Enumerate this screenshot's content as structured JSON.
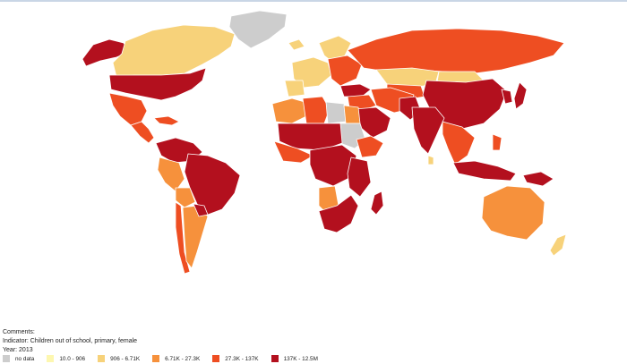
{
  "comments_label": "Comments:",
  "indicator_line": "Indicator: Children out of school, primary, female",
  "year_line": "Year: 2013",
  "legend": [
    {
      "label": "no data",
      "color": "#cdcdcd"
    },
    {
      "label": "10.0 - 906",
      "color": "#fdf7b0"
    },
    {
      "label": "906 - 6.71K",
      "color": "#f7d27a"
    },
    {
      "label": "6.71K - 27.3K",
      "color": "#f6913c"
    },
    {
      "label": "27.3K - 137K",
      "color": "#ee4e22"
    },
    {
      "label": "137K - 12.5M",
      "color": "#b3101e"
    }
  ],
  "regions": [
    {
      "name": "alaska",
      "cls": 5
    },
    {
      "name": "canada",
      "cls": 2
    },
    {
      "name": "greenland",
      "cls": 0
    },
    {
      "name": "usa",
      "cls": 5
    },
    {
      "name": "mexico",
      "cls": 4
    },
    {
      "name": "central-america",
      "cls": 4
    },
    {
      "name": "caribbean",
      "cls": 4
    },
    {
      "name": "colombia-venezuela",
      "cls": 5
    },
    {
      "name": "brazil",
      "cls": 5
    },
    {
      "name": "peru",
      "cls": 3
    },
    {
      "name": "bolivia",
      "cls": 3
    },
    {
      "name": "chile",
      "cls": 4
    },
    {
      "name": "argentina",
      "cls": 3
    },
    {
      "name": "paraguay",
      "cls": 5
    },
    {
      "name": "iceland",
      "cls": 2
    },
    {
      "name": "scandinavia",
      "cls": 2
    },
    {
      "name": "western-europe",
      "cls": 2
    },
    {
      "name": "iberia",
      "cls": 2
    },
    {
      "name": "eastern-europe",
      "cls": 4
    },
    {
      "name": "russia",
      "cls": 4
    },
    {
      "name": "kazakhstan",
      "cls": 2
    },
    {
      "name": "central-asia",
      "cls": 4
    },
    {
      "name": "mongolia",
      "cls": 2
    },
    {
      "name": "china",
      "cls": 5
    },
    {
      "name": "korea",
      "cls": 5
    },
    {
      "name": "japan",
      "cls": 5
    },
    {
      "name": "turkey",
      "cls": 5
    },
    {
      "name": "middle-east",
      "cls": 4
    },
    {
      "name": "arabia",
      "cls": 5
    },
    {
      "name": "iran-afghanistan",
      "cls": 4
    },
    {
      "name": "pakistan",
      "cls": 5
    },
    {
      "name": "india",
      "cls": 5
    },
    {
      "name": "southeast-asia",
      "cls": 4
    },
    {
      "name": "indonesia",
      "cls": 5
    },
    {
      "name": "philippines",
      "cls": 4
    },
    {
      "name": "papua",
      "cls": 5
    },
    {
      "name": "north-africa-west",
      "cls": 3
    },
    {
      "name": "algeria",
      "cls": 4
    },
    {
      "name": "libya",
      "cls": 0
    },
    {
      "name": "egypt",
      "cls": 3
    },
    {
      "name": "sudan",
      "cls": 0
    },
    {
      "name": "sahel",
      "cls": 5
    },
    {
      "name": "west-africa",
      "cls": 4
    },
    {
      "name": "central-africa",
      "cls": 5
    },
    {
      "name": "horn-of-africa",
      "cls": 4
    },
    {
      "name": "east-africa",
      "cls": 5
    },
    {
      "name": "southern-africa",
      "cls": 5
    },
    {
      "name": "namibia-botswana",
      "cls": 3
    },
    {
      "name": "madagascar",
      "cls": 5
    },
    {
      "name": "australia",
      "cls": 3
    },
    {
      "name": "new-zealand",
      "cls": 2
    },
    {
      "name": "sri-lanka",
      "cls": 2
    }
  ]
}
